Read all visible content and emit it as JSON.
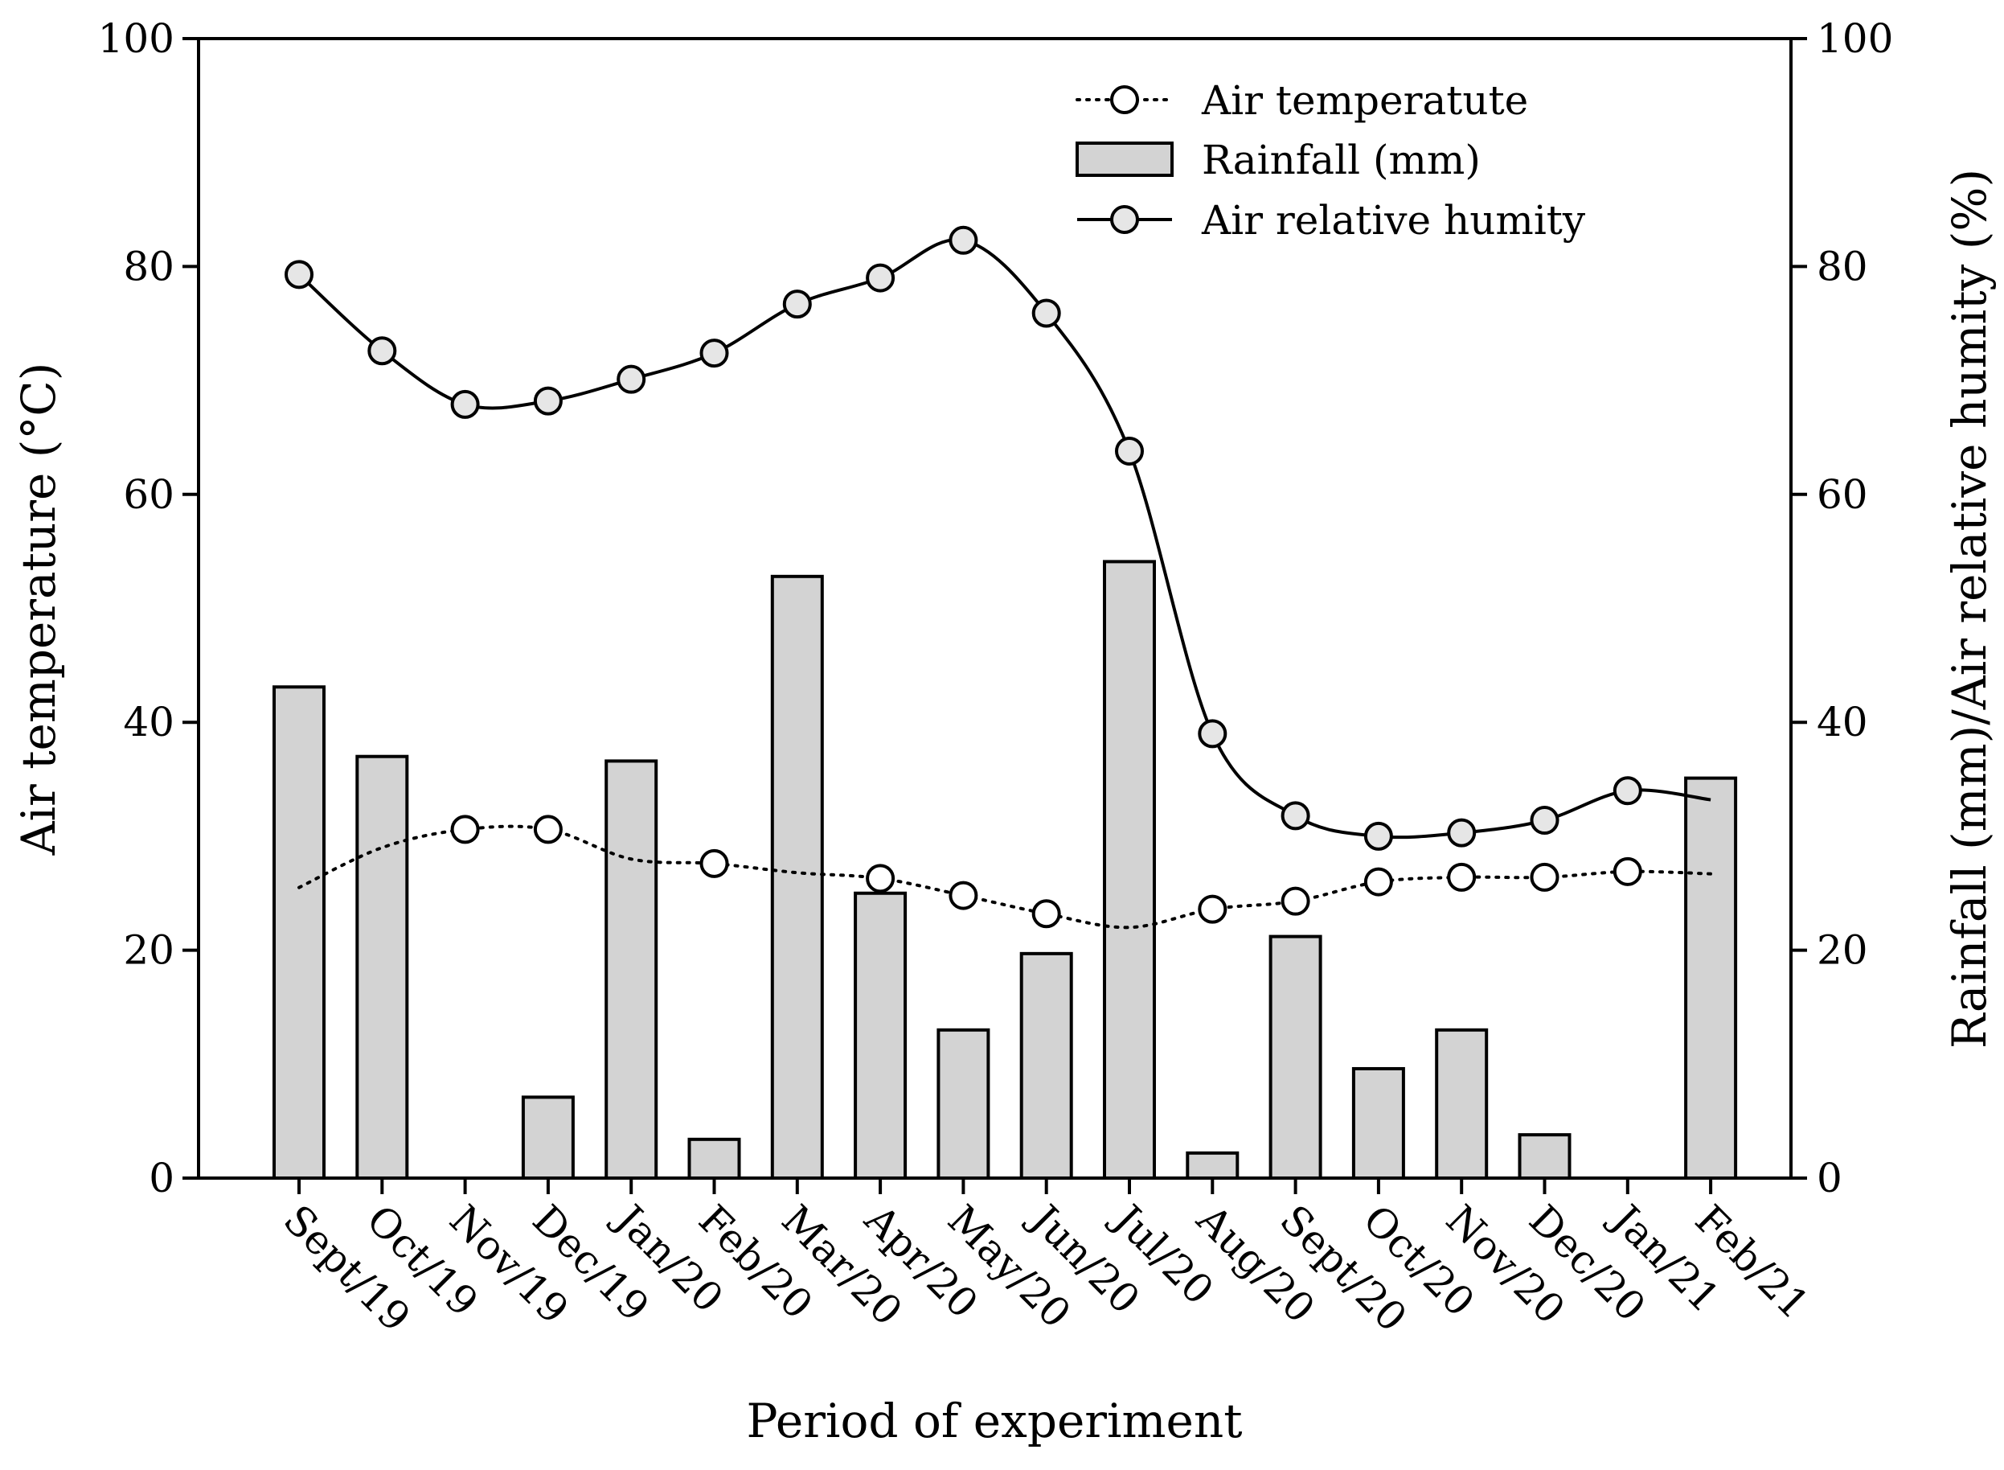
{
  "chart_data": {
    "type": "bar+line",
    "xlabel": "Period of experiment",
    "ylabel_left": "Air temperature (°C)",
    "ylabel_right": "Rainfall (mm)/Air relative humity (%)",
    "ylim_left": [
      0,
      100
    ],
    "ylim_right": [
      0,
      100
    ],
    "yticks_left": [
      0,
      20,
      40,
      60,
      80,
      100
    ],
    "yticks_right": [
      0,
      20,
      40,
      60,
      80,
      100
    ],
    "categories": [
      "Sept/19",
      "Oct/19",
      "Nov/19",
      "Dec/19",
      "Jan/20",
      "Feb/20",
      "Mar/20",
      "Apr/20",
      "May/20",
      "Jun/20",
      "Jul/20",
      "Aug/20",
      "Sept/20",
      "Oct/20",
      "Nov/20",
      "Dec/20",
      "Jan/21",
      "Feb/21"
    ],
    "legend_position": "top-right",
    "series": [
      {
        "name": "Air temperatute",
        "kind": "line",
        "style": "dotted",
        "axis": "left",
        "values": [
          25.5,
          29.0,
          30.6,
          30.6,
          28.0,
          27.6,
          26.8,
          26.3,
          24.8,
          23.2,
          22.0,
          23.6,
          24.3,
          26.0,
          26.4,
          26.4,
          26.9,
          26.7
        ],
        "markers": [
          false,
          false,
          true,
          true,
          false,
          true,
          false,
          true,
          true,
          true,
          false,
          true,
          true,
          true,
          true,
          true,
          true,
          false
        ]
      },
      {
        "name": "Rainfall (mm)",
        "kind": "bar",
        "axis": "right",
        "color": "#d3d3d3",
        "values": [
          43.1,
          37.0,
          0,
          7.1,
          36.6,
          3.4,
          52.8,
          25.0,
          13.0,
          19.7,
          54.1,
          2.2,
          21.2,
          9.6,
          13.0,
          3.8,
          0,
          35.1
        ]
      },
      {
        "name": "Air relative humity",
        "kind": "line",
        "style": "solid",
        "axis": "right",
        "values": [
          79.3,
          72.6,
          67.9,
          68.2,
          70.1,
          72.4,
          76.7,
          79.0,
          82.3,
          75.9,
          63.8,
          39.0,
          31.8,
          30.0,
          30.3,
          31.4,
          34.0,
          33.2
        ],
        "markers": [
          true,
          true,
          true,
          true,
          true,
          true,
          true,
          true,
          true,
          true,
          true,
          true,
          true,
          true,
          true,
          true,
          true,
          false
        ]
      }
    ]
  },
  "colors": {
    "bar_fill": "#d3d3d3",
    "marker_fill": "#e6e6e6",
    "line": "#000000"
  }
}
